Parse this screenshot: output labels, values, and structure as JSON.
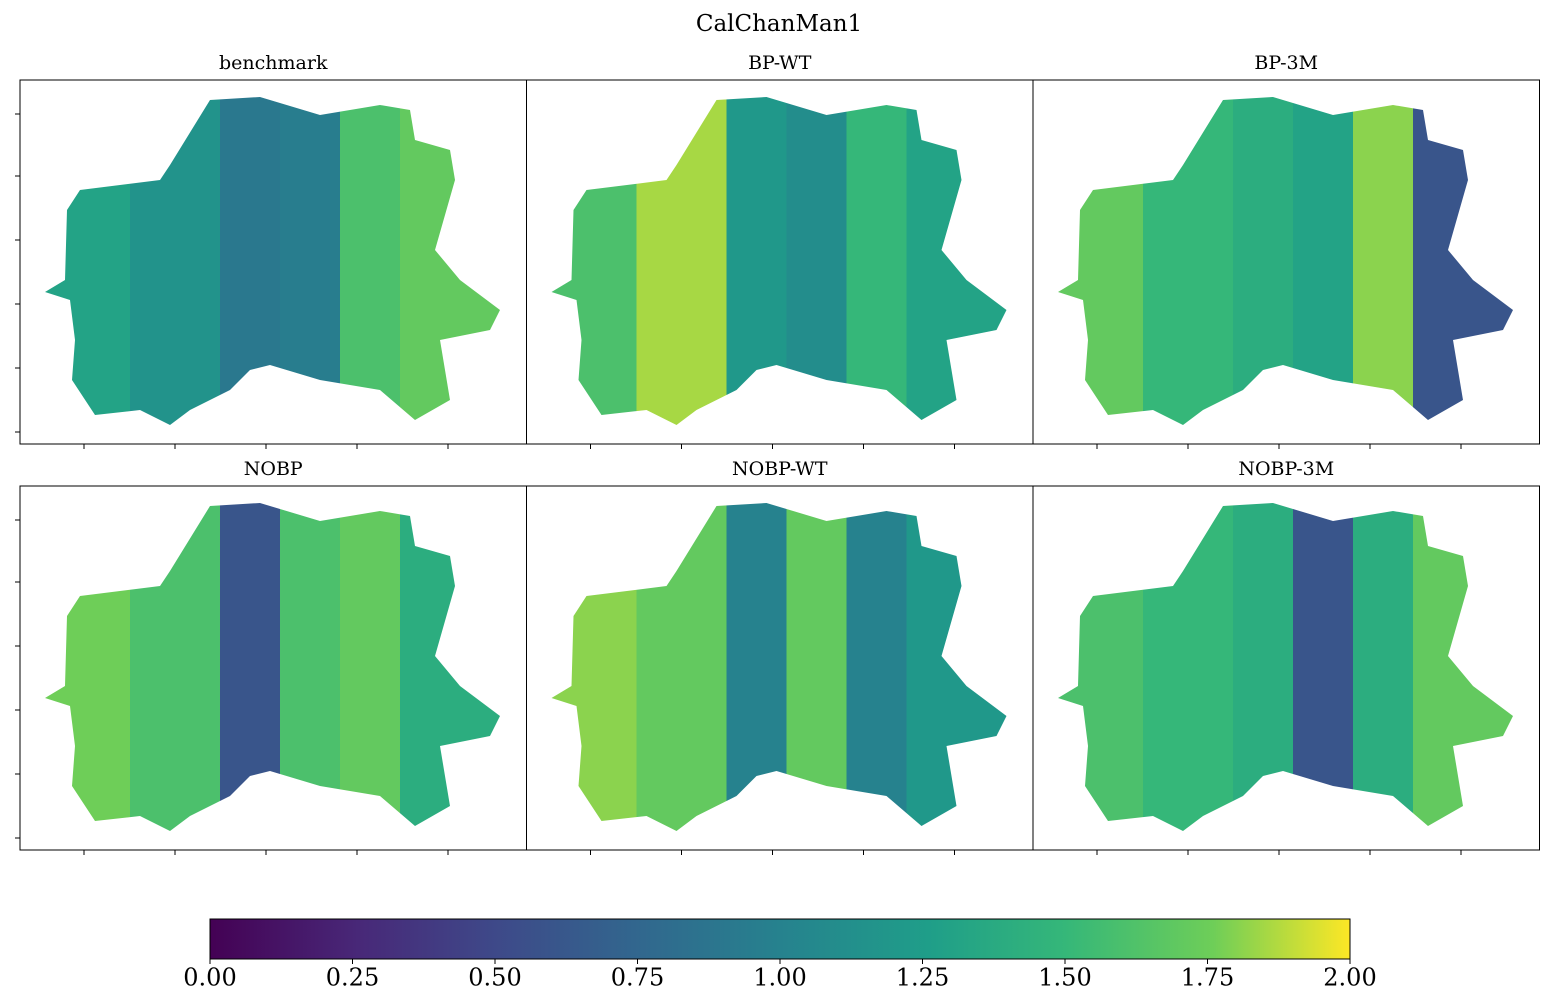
{
  "title": "CalChanMan1",
  "panels": [
    {
      "title": "benchmark",
      "values": [
        1.3,
        1.15,
        0.9,
        0.95,
        1.6,
        1.7
      ]
    },
    {
      "title": "BP-WT",
      "values": [
        1.6,
        1.85,
        1.2,
        1.1,
        1.5,
        1.3
      ]
    },
    {
      "title": "BP-3M",
      "values": [
        1.7,
        1.5,
        1.4,
        1.3,
        1.8,
        0.6
      ]
    },
    {
      "title": "NOBP",
      "values": [
        1.75,
        1.6,
        0.6,
        1.6,
        1.7,
        1.4
      ]
    },
    {
      "title": "NOBP-WT",
      "values": [
        1.8,
        1.7,
        1.0,
        1.7,
        1.0,
        1.2
      ]
    },
    {
      "title": "NOBP-3M",
      "values": [
        1.6,
        1.5,
        1.4,
        0.6,
        1.4,
        1.7
      ]
    }
  ],
  "colorbar": {
    "lim": [
      0,
      2
    ],
    "ticks": [
      {
        "value": 0,
        "label": "0.00"
      },
      0.25,
      {
        "value": 0.5,
        "label": "0.50"
      },
      0.75,
      {
        "value": 1,
        "label": "1.00"
      },
      1.25,
      {
        "value": 1.5,
        "label": "1.50"
      },
      1.75,
      {
        "value": 2,
        "label": "2.00"
      }
    ]
  }
}
